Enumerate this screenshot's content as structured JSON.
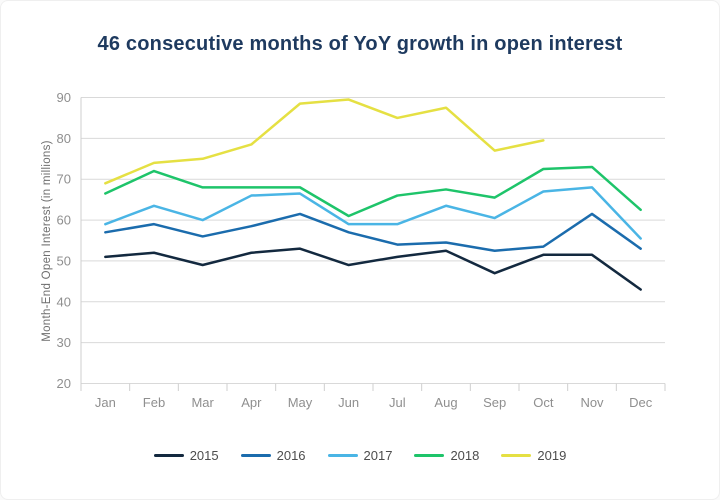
{
  "chart_data": {
    "type": "line",
    "title": "46 consecutive months of YoY growth in open interest",
    "xlabel": "",
    "ylabel": "Month-End Open Interest (in millions)",
    "categories": [
      "Jan",
      "Feb",
      "Mar",
      "Apr",
      "May",
      "Jun",
      "Jul",
      "Aug",
      "Sep",
      "Oct",
      "Nov",
      "Dec"
    ],
    "ylim": [
      20,
      90
    ],
    "ytick_step": 10,
    "grid": true,
    "legend_position": "bottom",
    "series": [
      {
        "name": "2015",
        "color": "#13293f",
        "values": [
          51,
          52,
          49,
          52,
          53,
          49,
          51,
          52.5,
          47,
          51.5,
          51.5,
          43
        ]
      },
      {
        "name": "2016",
        "color": "#1b6cad",
        "values": [
          57,
          59,
          56,
          58.5,
          61.5,
          57,
          54,
          54.5,
          52.5,
          53.5,
          61.5,
          53
        ]
      },
      {
        "name": "2017",
        "color": "#4ab5e5",
        "values": [
          59,
          63.5,
          60,
          66,
          66.5,
          59,
          59,
          63.5,
          60.5,
          67,
          68,
          55.5
        ]
      },
      {
        "name": "2018",
        "color": "#1ec46a",
        "values": [
          66.5,
          72,
          68,
          68,
          68,
          61,
          66,
          67.5,
          65.5,
          72.5,
          73,
          62.5
        ]
      },
      {
        "name": "2019",
        "color": "#e5e043",
        "values": [
          69,
          74,
          75,
          78.5,
          88.5,
          89.5,
          85,
          87.5,
          77,
          79.5,
          null,
          null
        ]
      }
    ]
  },
  "style": {
    "title_color": "#1e3a5f",
    "gridline_color": "#d9d9d9",
    "axis_line_color": "#cfcfcf",
    "tick_label_color": "#8f8f8f",
    "axis_title_color": "#6e6e6e",
    "legend_text_color": "#4d4d4d"
  }
}
